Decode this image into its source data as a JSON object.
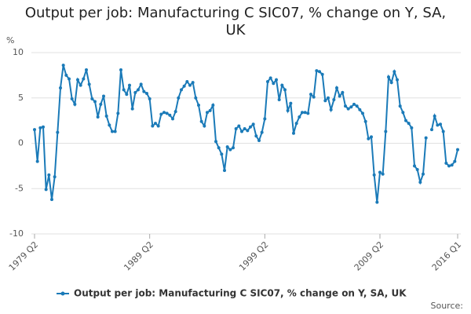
{
  "chart_data": {
    "type": "line",
    "title": "Output per job: Manufacturing C SIC07, % change on Y, SA, UK",
    "y_label": "%",
    "source": "Source:",
    "categories": [
      "1979 Q2",
      null,
      null,
      null,
      null,
      null,
      null,
      null,
      null,
      null,
      null,
      null,
      null,
      null,
      null,
      null,
      null,
      null,
      null,
      null,
      null,
      null,
      null,
      null,
      null,
      null,
      null,
      null,
      null,
      null,
      null,
      null,
      null,
      null,
      null,
      null,
      null,
      null,
      null,
      null,
      "1989 Q2",
      null,
      null,
      null,
      null,
      null,
      null,
      null,
      null,
      null,
      null,
      null,
      null,
      null,
      null,
      null,
      null,
      null,
      null,
      null,
      null,
      null,
      null,
      null,
      null,
      null,
      null,
      null,
      null,
      null,
      null,
      null,
      null,
      null,
      null,
      null,
      null,
      null,
      null,
      null,
      "1999 Q2",
      null,
      null,
      null,
      null,
      null,
      null,
      null,
      null,
      null,
      null,
      null,
      null,
      null,
      null,
      null,
      null,
      null,
      null,
      null,
      null,
      null,
      null,
      null,
      null,
      null,
      null,
      null,
      null,
      null,
      null,
      null,
      null,
      null,
      null,
      null,
      null,
      null,
      null,
      null,
      "2009 Q2",
      null,
      null,
      null,
      null,
      null,
      null,
      null,
      null,
      null,
      null,
      null,
      null,
      null,
      null,
      null,
      null,
      null,
      null,
      null,
      null,
      null,
      null,
      null,
      null,
      null,
      null,
      "2016 Q1"
    ],
    "series": [
      {
        "name": "Output per job: Manufacturing C SIC07, % change on Y, SA, UK",
        "color": "#1a7ab8",
        "values": [
          1.5,
          -2.0,
          1.7,
          1.8,
          -5.1,
          -3.5,
          -6.2,
          -3.7,
          1.2,
          6.1,
          8.6,
          7.5,
          7.1,
          4.9,
          4.3,
          7.0,
          6.4,
          7.1,
          8.1,
          6.5,
          4.9,
          4.6,
          2.9,
          4.3,
          5.2,
          3.0,
          2.0,
          1.3,
          1.3,
          3.3,
          8.1,
          5.9,
          5.4,
          6.4,
          3.8,
          5.6,
          5.9,
          6.5,
          5.7,
          5.5,
          4.9,
          1.9,
          2.2,
          1.9,
          3.2,
          3.4,
          3.3,
          3.1,
          2.7,
          3.5,
          5.0,
          5.9,
          6.3,
          6.8,
          6.4,
          6.7,
          5.0,
          4.2,
          2.4,
          1.9,
          3.4,
          3.6,
          4.2,
          0.2,
          -0.5,
          -1.2,
          -3.0,
          -0.4,
          -0.7,
          -0.5,
          1.6,
          1.9,
          1.3,
          1.6,
          1.4,
          1.8,
          2.1,
          0.8,
          0.3,
          1.2,
          2.7,
          6.8,
          7.2,
          6.6,
          7.0,
          4.8,
          6.4,
          5.9,
          3.6,
          4.4,
          1.1,
          2.2,
          2.9,
          3.4,
          3.4,
          3.3,
          5.4,
          5.1,
          8.0,
          7.9,
          7.6,
          4.7,
          5.0,
          3.7,
          4.8,
          6.1,
          5.2,
          5.6,
          4.1,
          3.8,
          4.0,
          4.3,
          4.1,
          3.7,
          3.3,
          2.4,
          0.5,
          0.7,
          -3.5,
          -6.5,
          -3.2,
          -3.4,
          1.3,
          7.3,
          6.7,
          7.9,
          7.0,
          4.1,
          3.4,
          2.5,
          2.2,
          1.7,
          -2.5,
          -2.9,
          -4.3,
          -3.4,
          0.6,
          null,
          1.5,
          3.0,
          2.0,
          2.1,
          1.3,
          -2.2,
          -2.5,
          -2.4,
          -2.0,
          -0.7
        ]
      }
    ],
    "ylim": [
      -10,
      10
    ],
    "yticks": [
      -10,
      -5,
      0,
      5,
      10
    ],
    "grid": true,
    "legend": "bottom"
  }
}
